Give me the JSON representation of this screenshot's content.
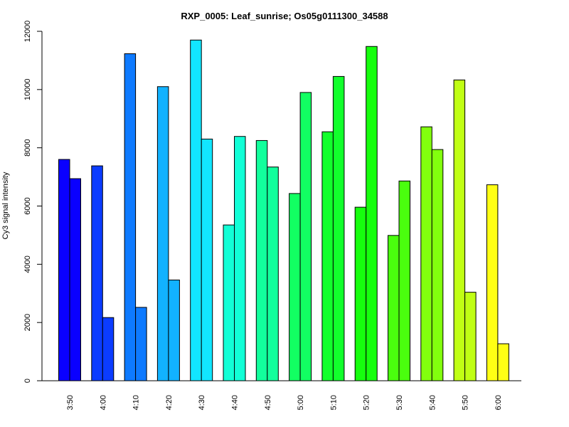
{
  "chart_data": {
    "type": "bar",
    "title": "RXP_0005: Leaf_sunrise; Os05g0111300_34588",
    "xlabel": "",
    "ylabel": "Cy3 signal intensity",
    "ylim": [
      0,
      12000
    ],
    "yticks": [
      0,
      2000,
      4000,
      6000,
      8000,
      10000,
      12000
    ],
    "grid": false,
    "legend": "none",
    "categories": [
      "3:50",
      "4:00",
      "4:10",
      "4:20",
      "4:30",
      "4:40",
      "4:50",
      "5:00",
      "5:10",
      "5:20",
      "5:30",
      "5:40",
      "5:50",
      "6:00"
    ],
    "colors": [
      "#0a00ff",
      "#0b3cff",
      "#0e7aff",
      "#12b2ff",
      "#12e6ff",
      "#12ffd6",
      "#12ff9c",
      "#12ff62",
      "#12ff2c",
      "#16ff0e",
      "#4aff0e",
      "#82ff0e",
      "#c0ff14",
      "#ffff14"
    ],
    "series": [
      {
        "values": [
          7600,
          7380,
          11230,
          10100,
          11700,
          5350,
          8250,
          6430,
          8550,
          5960,
          4990,
          8720,
          10330,
          6730
        ]
      },
      {
        "values": [
          6940,
          2170,
          2520,
          3460,
          8300,
          8390,
          7340,
          9900,
          10450,
          11480,
          6860,
          7940,
          3040,
          1270
        ]
      }
    ]
  }
}
